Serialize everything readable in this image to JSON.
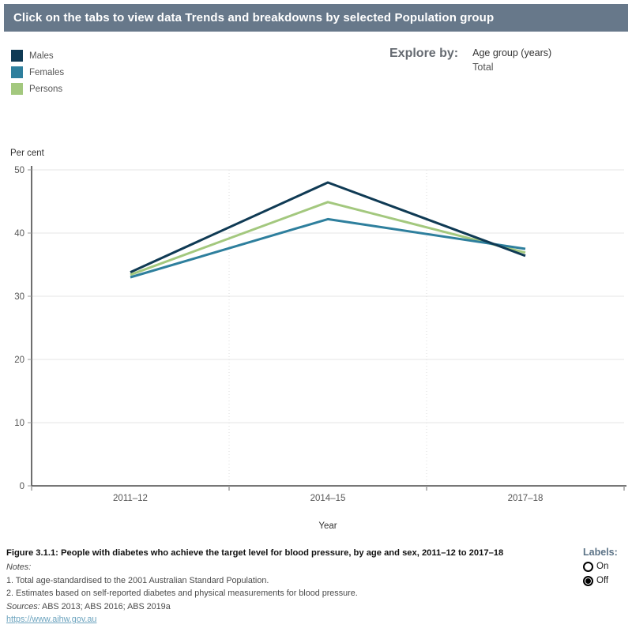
{
  "header": {
    "title": "Click on the tabs to view data Trends and breakdowns by selected Population group",
    "bg_color": "#67788A"
  },
  "legend": {
    "items": [
      {
        "label": "Males",
        "color": "#0F3A54"
      },
      {
        "label": "Females",
        "color": "#2E7F9D"
      },
      {
        "label": "Persons",
        "color": "#A3C87E"
      }
    ]
  },
  "explore_by": {
    "label": "Explore by:",
    "selected": "Age group (years)",
    "secondary": "Total"
  },
  "chart_data": {
    "type": "line",
    "title": "",
    "ylabel": "Per cent",
    "xlabel": "Year",
    "categories": [
      "2011–12",
      "2014–15",
      "2017–18"
    ],
    "series": [
      {
        "name": "Males",
        "color": "#0F3A54",
        "values": [
          33.8,
          48.0,
          36.4
        ]
      },
      {
        "name": "Females",
        "color": "#2E7F9D",
        "values": [
          33.0,
          42.2,
          37.5
        ]
      },
      {
        "name": "Persons",
        "color": "#A3C87E",
        "values": [
          33.4,
          44.9,
          36.9
        ]
      }
    ],
    "ylim": [
      0,
      50
    ],
    "yticks": [
      0,
      10,
      20,
      30,
      40,
      50
    ],
    "grid": true,
    "legend_position": "top-left",
    "colors": {
      "gridline": "#e6e6e6",
      "column_divider": "#dcdcdc",
      "axis_line": "#4a4a4a",
      "tick": "#999999",
      "tick_label": "#555555"
    }
  },
  "footer": {
    "caption": "Figure 3.1.1: People with diabetes who achieve the target level for blood pressure, by age and sex, 2011–12 to 2017–18",
    "notes_label": "Notes:",
    "notes": [
      "1. Total age-standardised to the 2001 Australian Standard Population.",
      "2. Estimates based on self-reported diabetes and physical measurements for blood pressure."
    ],
    "sources_label": "Sources:",
    "sources": "ABS 2013; ABS 2016; ABS 2019a",
    "link": "https://www.aihw.gov.au"
  },
  "labels_control": {
    "label": "Labels:",
    "options": [
      {
        "label": "On",
        "selected": false
      },
      {
        "label": "Off",
        "selected": true
      }
    ]
  }
}
